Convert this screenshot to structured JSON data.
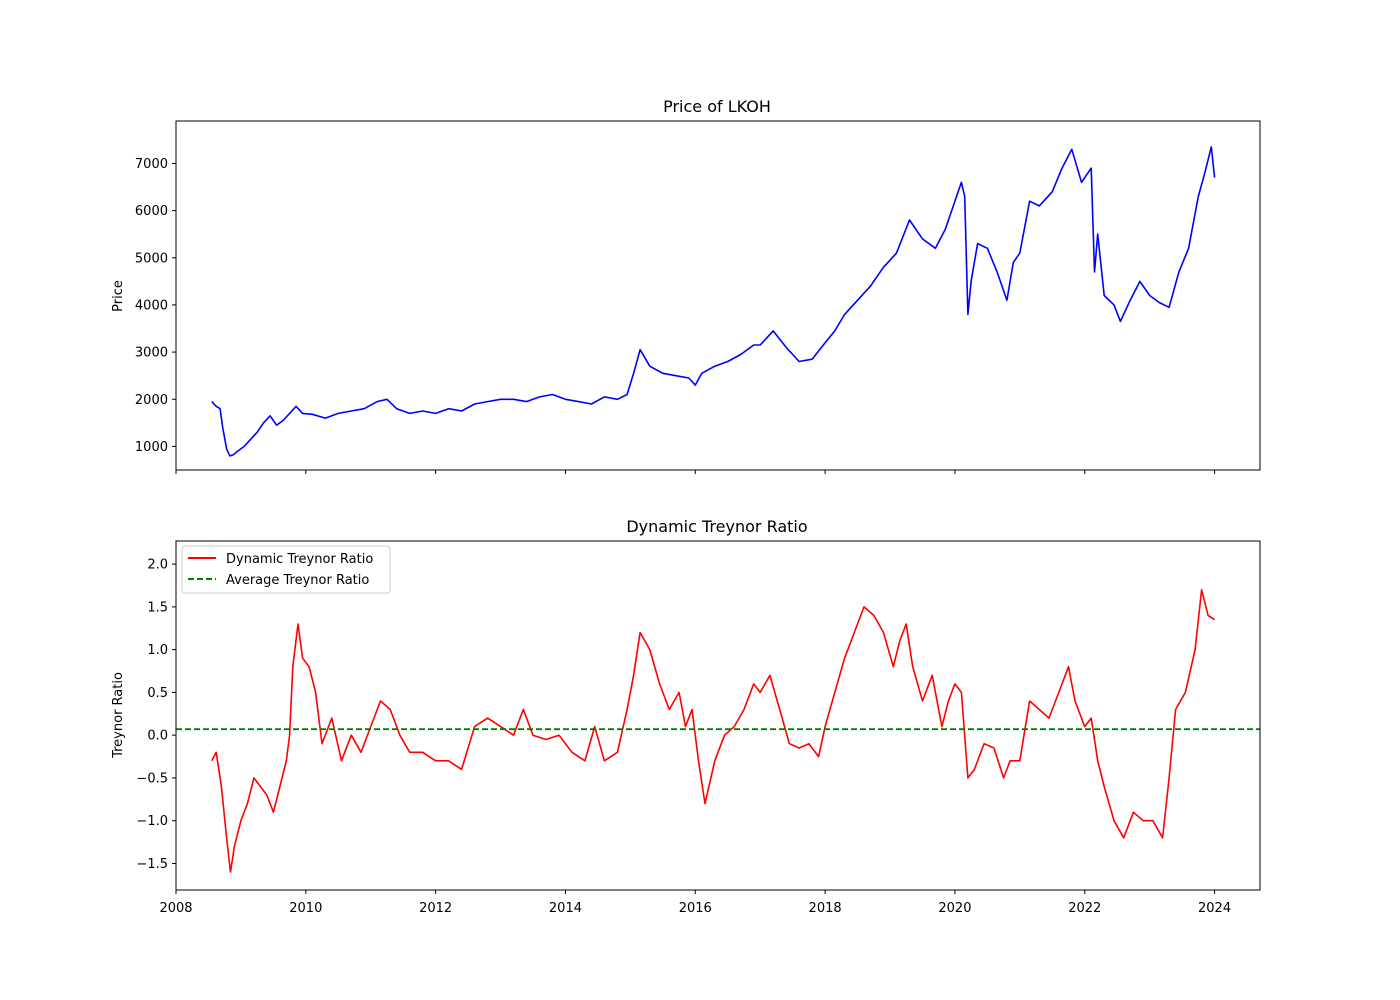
{
  "chart_data": [
    {
      "type": "line",
      "title": "Price of LKOH",
      "xlabel": "",
      "ylabel": "Price",
      "xlim": [
        2008.0,
        2024.7
      ],
      "ylim": [
        500,
        7900
      ],
      "yticks": [
        1000,
        2000,
        3000,
        4000,
        5000,
        6000,
        7000
      ],
      "xticks": [
        2008,
        2010,
        2012,
        2014,
        2016,
        2018,
        2020,
        2022,
        2024
      ],
      "xtick_labels_shown": false,
      "grid": false,
      "colors": {
        "series": "#0000ff"
      },
      "series": [
        {
          "color": "#0000ff",
          "x": [
            2008.55,
            2008.62,
            2008.68,
            2008.72,
            2008.78,
            2008.83,
            2008.88,
            2008.95,
            2009.05,
            2009.15,
            2009.25,
            2009.35,
            2009.45,
            2009.55,
            2009.65,
            2009.75,
            2009.85,
            2009.95,
            2010.1,
            2010.3,
            2010.5,
            2010.7,
            2010.9,
            2011.1,
            2011.25,
            2011.4,
            2011.6,
            2011.8,
            2012.0,
            2012.2,
            2012.4,
            2012.6,
            2012.8,
            2013.0,
            2013.2,
            2013.4,
            2013.6,
            2013.8,
            2014.0,
            2014.2,
            2014.4,
            2014.6,
            2014.8,
            2014.95,
            2015.05,
            2015.15,
            2015.3,
            2015.5,
            2015.7,
            2015.9,
            2016.0,
            2016.1,
            2016.3,
            2016.5,
            2016.7,
            2016.9,
            2017.0,
            2017.2,
            2017.4,
            2017.6,
            2017.8,
            2018.0,
            2018.15,
            2018.3,
            2018.5,
            2018.7,
            2018.9,
            2019.1,
            2019.3,
            2019.5,
            2019.7,
            2019.85,
            2020.0,
            2020.1,
            2020.15,
            2020.2,
            2020.25,
            2020.35,
            2020.5,
            2020.65,
            2020.8,
            2020.9,
            2021.0,
            2021.15,
            2021.3,
            2021.5,
            2021.65,
            2021.8,
            2021.95,
            2022.1,
            2022.15,
            2022.2,
            2022.3,
            2022.45,
            2022.55,
            2022.7,
            2022.85,
            2023.0,
            2023.15,
            2023.3,
            2023.45,
            2023.6,
            2023.75,
            2023.85,
            2023.95,
            2024.0
          ],
          "y": [
            1950,
            1850,
            1800,
            1400,
            950,
            800,
            820,
            900,
            1000,
            1150,
            1300,
            1500,
            1650,
            1450,
            1550,
            1700,
            1850,
            1700,
            1680,
            1600,
            1700,
            1750,
            1800,
            1950,
            2000,
            1800,
            1700,
            1750,
            1700,
            1800,
            1750,
            1900,
            1950,
            2000,
            2000,
            1950,
            2050,
            2100,
            2000,
            1950,
            1900,
            2050,
            2000,
            2100,
            2550,
            3050,
            2700,
            2550,
            2500,
            2450,
            2300,
            2550,
            2700,
            2800,
            2950,
            3150,
            3150,
            3450,
            3100,
            2800,
            2850,
            3200,
            3450,
            3800,
            4100,
            4400,
            4800,
            5100,
            5800,
            5400,
            5200,
            5600,
            6200,
            6600,
            6300,
            3800,
            4500,
            5300,
            5200,
            4700,
            4100,
            4900,
            5100,
            6200,
            6100,
            6400,
            6900,
            7300,
            6600,
            6900,
            4700,
            5500,
            4200,
            4000,
            3650,
            4100,
            4500,
            4200,
            4050,
            3950,
            4700,
            5200,
            6300,
            6800,
            7350,
            6700
          ]
        }
      ]
    },
    {
      "type": "line",
      "title": "Dynamic Treynor Ratio",
      "xlabel": "",
      "ylabel": "Treynor Ratio",
      "xlim": [
        2008.0,
        2024.7
      ],
      "ylim": [
        -1.81,
        2.27
      ],
      "yticks": [
        -1.5,
        -1.0,
        -0.5,
        0.0,
        0.5,
        1.0,
        1.5,
        2.0
      ],
      "ytick_labels": [
        "−1.5",
        "−1.0",
        "−0.5",
        "0.0",
        "0.5",
        "1.0",
        "1.5",
        "2.0"
      ],
      "xticks": [
        2008,
        2010,
        2012,
        2014,
        2016,
        2018,
        2020,
        2022,
        2024
      ],
      "xtick_labels": [
        "2008",
        "2010",
        "2012",
        "2014",
        "2016",
        "2018",
        "2020",
        "2022",
        "2024"
      ],
      "grid": false,
      "legend": {
        "placement": "upper-left",
        "entries": [
          "Dynamic Treynor Ratio",
          "Average Treynor Ratio"
        ]
      },
      "colors": {
        "ratio": "#ff0000",
        "average": "#008000"
      },
      "series": [
        {
          "name": "Dynamic Treynor Ratio",
          "color": "#ff0000",
          "style": "solid",
          "x": [
            2008.55,
            2008.62,
            2008.7,
            2008.78,
            2008.84,
            2008.9,
            2009.0,
            2009.1,
            2009.2,
            2009.3,
            2009.4,
            2009.5,
            2009.6,
            2009.7,
            2009.75,
            2009.8,
            2009.88,
            2009.95,
            2010.05,
            2010.15,
            2010.25,
            2010.4,
            2010.55,
            2010.7,
            2010.85,
            2011.0,
            2011.15,
            2011.3,
            2011.45,
            2011.6,
            2011.8,
            2012.0,
            2012.2,
            2012.4,
            2012.6,
            2012.8,
            2013.0,
            2013.2,
            2013.35,
            2013.5,
            2013.7,
            2013.9,
            2014.1,
            2014.3,
            2014.45,
            2014.6,
            2014.8,
            2014.95,
            2015.05,
            2015.15,
            2015.3,
            2015.45,
            2015.6,
            2015.75,
            2015.85,
            2015.95,
            2016.05,
            2016.15,
            2016.3,
            2016.45,
            2016.6,
            2016.75,
            2016.9,
            2017.0,
            2017.15,
            2017.3,
            2017.45,
            2017.6,
            2017.75,
            2017.9,
            2018.0,
            2018.15,
            2018.3,
            2018.45,
            2018.6,
            2018.75,
            2018.9,
            2019.05,
            2019.15,
            2019.25,
            2019.35,
            2019.5,
            2019.65,
            2019.8,
            2019.9,
            2020.0,
            2020.1,
            2020.2,
            2020.3,
            2020.45,
            2020.6,
            2020.75,
            2020.85,
            2021.0,
            2021.15,
            2021.3,
            2021.45,
            2021.6,
            2021.75,
            2021.85,
            2022.0,
            2022.1,
            2022.2,
            2022.3,
            2022.45,
            2022.6,
            2022.75,
            2022.9,
            2023.05,
            2023.2,
            2023.3,
            2023.4,
            2023.55,
            2023.7,
            2023.8,
            2023.9,
            2024.0
          ],
          "y": [
            -0.3,
            -0.2,
            -0.6,
            -1.2,
            -1.6,
            -1.3,
            -1.0,
            -0.8,
            -0.5,
            -0.6,
            -0.7,
            -0.9,
            -0.6,
            -0.3,
            0.0,
            0.8,
            1.3,
            0.9,
            0.8,
            0.5,
            -0.1,
            0.2,
            -0.3,
            0.0,
            -0.2,
            0.1,
            0.4,
            0.3,
            0.0,
            -0.2,
            -0.2,
            -0.3,
            -0.3,
            -0.4,
            0.1,
            0.2,
            0.1,
            0.0,
            0.3,
            0.0,
            -0.05,
            0.0,
            -0.2,
            -0.3,
            0.1,
            -0.3,
            -0.2,
            0.3,
            0.7,
            1.2,
            1.0,
            0.6,
            0.3,
            0.5,
            0.1,
            0.3,
            -0.3,
            -0.8,
            -0.3,
            0.0,
            0.1,
            0.3,
            0.6,
            0.5,
            0.7,
            0.3,
            -0.1,
            -0.15,
            -0.1,
            -0.25,
            0.1,
            0.5,
            0.9,
            1.2,
            1.5,
            1.4,
            1.2,
            0.8,
            1.1,
            1.3,
            0.8,
            0.4,
            0.7,
            0.1,
            0.4,
            0.6,
            0.5,
            -0.5,
            -0.4,
            -0.1,
            -0.15,
            -0.5,
            -0.3,
            -0.3,
            0.4,
            0.3,
            0.2,
            0.5,
            0.8,
            0.4,
            0.1,
            0.2,
            -0.3,
            -0.6,
            -1.0,
            -1.2,
            -0.9,
            -1.0,
            -1.0,
            -1.2,
            -0.5,
            0.3,
            0.5,
            1.0,
            1.7,
            1.4,
            1.35
          ]
        },
        {
          "name": "Average Treynor Ratio",
          "color": "#008000",
          "style": "dashed",
          "value": 0.07
        }
      ]
    }
  ]
}
